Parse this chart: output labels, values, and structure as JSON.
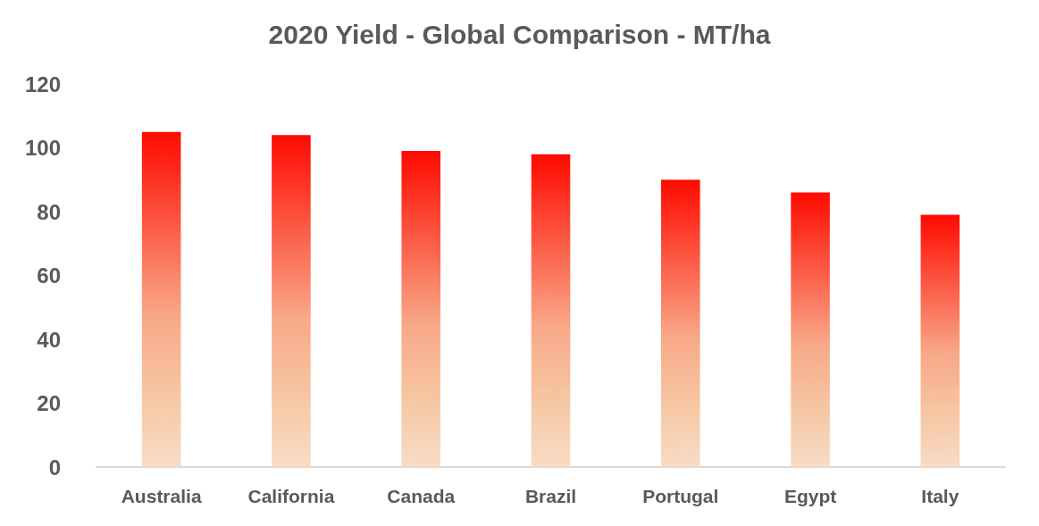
{
  "chart_data": {
    "type": "bar",
    "title": "2020 Yield - Global Comparison - MT/ha",
    "categories": [
      "Australia",
      "California",
      "Canada",
      "Brazil",
      "Portugal",
      "Egypt",
      "Italy"
    ],
    "values": [
      105,
      104,
      99,
      98,
      90,
      86,
      79
    ],
    "color": "#ff0a00",
    "ylim": [
      0,
      120
    ],
    "yticks": [
      0,
      20,
      40,
      60,
      80,
      100,
      120
    ]
  }
}
